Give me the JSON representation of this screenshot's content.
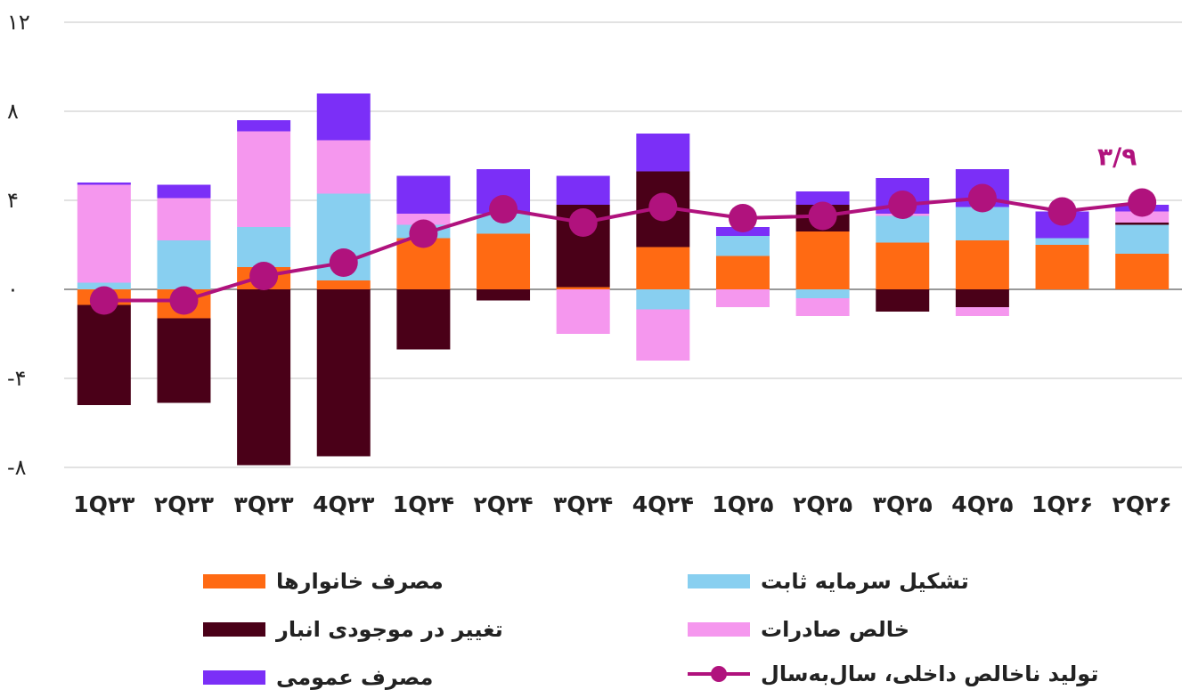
{
  "chart_data": {
    "type": "bar",
    "stacked": true,
    "categories": [
      "1Q۲۳",
      "۲Q۲۳",
      "۳Q۲۳",
      "4Q۲۳",
      "1Q۲۴",
      "۲Q۲۴",
      "۳Q۲۴",
      "4Q۲۴",
      "1Q۲۵",
      "۲Q۲۵",
      "۳Q۲۵",
      "4Q۲۵",
      "1Q۲۶",
      "۲Q۲۶"
    ],
    "ylim": [
      -8,
      12
    ],
    "yticks": [
      -8,
      -4,
      0,
      4,
      8,
      12
    ],
    "ytick_labels": [
      "-۸",
      "-۴",
      "۰",
      "۴",
      "۸",
      "۱۲"
    ],
    "grid": true,
    "legend_position": "bottom",
    "series": [
      {
        "name": "مصرف خانوارها",
        "color": "#FF6A13",
        "values": [
          -0.7,
          -1.3,
          1.0,
          0.4,
          2.3,
          2.5,
          0.1,
          1.9,
          1.5,
          2.6,
          2.1,
          2.2,
          2.0,
          1.6
        ]
      },
      {
        "name": "تشکیل سرمایه ثابت",
        "color": "#88CFF0",
        "values": [
          0.3,
          2.2,
          1.8,
          3.9,
          0.6,
          0.9,
          0.0,
          -0.9,
          0.9,
          -0.4,
          1.2,
          1.5,
          0.3,
          1.3
        ]
      },
      {
        "name": "تغییر در موجودی انبار",
        "color": "#4A0018",
        "values": [
          -4.5,
          -3.8,
          -7.9,
          -7.5,
          -2.7,
          -0.5,
          3.7,
          3.4,
          0.0,
          1.2,
          -1.0,
          -0.8,
          0.0,
          0.1
        ]
      },
      {
        "name": "خالص صادرات",
        "color": "#F597EE",
        "values": [
          4.4,
          1.9,
          4.3,
          2.4,
          0.5,
          0.0,
          -2.0,
          -2.3,
          -0.8,
          -0.8,
          0.1,
          -0.4,
          0.0,
          0.5
        ]
      },
      {
        "name": "مصرف عمومی",
        "color": "#7B2FF7",
        "values": [
          0.1,
          0.6,
          0.5,
          2.1,
          1.7,
          2.0,
          1.3,
          1.7,
          0.4,
          0.6,
          1.6,
          1.7,
          1.2,
          0.3
        ]
      }
    ],
    "line": {
      "name": "تولید ناخالص داخلی، سال‌به‌سال",
      "color": "#B0127D",
      "values": [
        -0.5,
        -0.5,
        0.6,
        1.2,
        2.5,
        3.6,
        3.0,
        3.7,
        3.2,
        3.3,
        3.8,
        4.1,
        3.5,
        3.9
      ]
    },
    "annotation": {
      "text": "۳/۹"
    }
  }
}
